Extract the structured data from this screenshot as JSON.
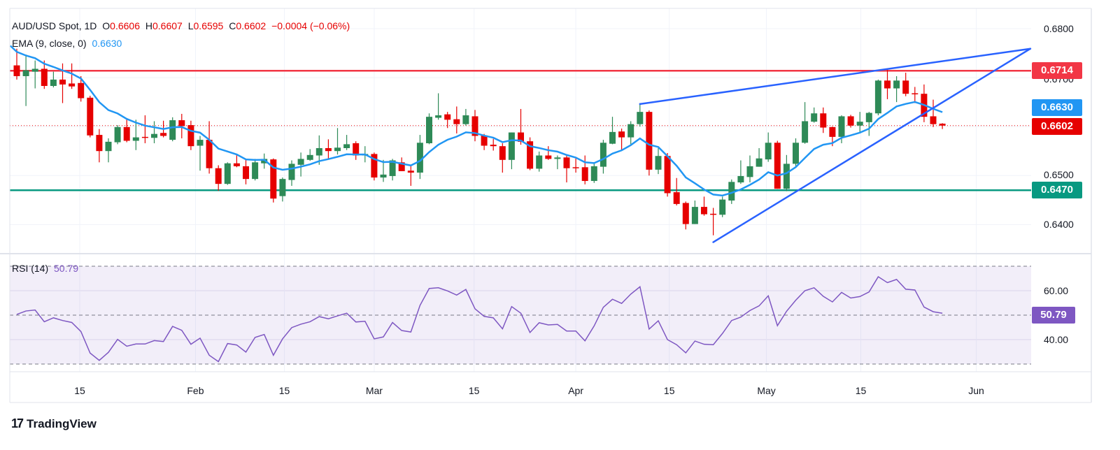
{
  "legend": {
    "symbol": "AUD/USD Spot, 1D",
    "open_label": "O",
    "open": "0.6606",
    "high_label": "H",
    "high": "0.6607",
    "low_label": "L",
    "low": "0.6595",
    "close_label": "C",
    "close": "0.6602",
    "change": "−0.0004 (−0.06%)",
    "ema_label": "EMA (9, close, 0)",
    "ema_value": "0.6630",
    "rsi_label": "RSI (14)",
    "rsi_value": "50.79"
  },
  "price_labels": {
    "resistance": "0.6714",
    "ema": "0.6630",
    "last": "0.6602",
    "support": "0.6470",
    "rsi": "50.79"
  },
  "logo": {
    "mark": "17",
    "text": "TradingView"
  },
  "colors": {
    "up": "#2e8a57",
    "down": "#e60000",
    "ema": "#2196f3",
    "trend": "#2962ff",
    "resistance": "#f23645",
    "support": "#089981",
    "rsi": "#7e57c2",
    "last": "#e60000"
  },
  "chart_data": {
    "type": "candlestick",
    "title": "AUD/USD Spot, 1D",
    "price_axis": {
      "ticks": [
        "0.6800",
        "0.6700",
        "0.6500",
        "0.6400"
      ],
      "range": [
        0.635,
        0.682
      ]
    },
    "rsi_axis": {
      "ticks": [
        "60.00",
        "40.00"
      ],
      "bands": [
        30,
        50,
        70
      ]
    },
    "x_ticks": [
      {
        "label": "15",
        "bar": 7.87
      },
      {
        "label": "Feb",
        "bar": 20.5
      },
      {
        "label": "15",
        "bar": 30.2
      },
      {
        "label": "Mar",
        "bar": 40
      },
      {
        "label": "15",
        "bar": 50.9
      },
      {
        "label": "Apr",
        "bar": 62
      },
      {
        "label": "15",
        "bar": 72.2
      },
      {
        "label": "May",
        "bar": 82.8
      },
      {
        "label": "15",
        "bar": 93.1
      },
      {
        "label": "Jun",
        "bar": 105.7
      }
    ],
    "ohlc": [
      [
        0.6725,
        0.6759,
        0.6696,
        0.6703
      ],
      [
        0.6703,
        0.6747,
        0.6642,
        0.6715
      ],
      [
        0.6712,
        0.6735,
        0.6678,
        0.6718
      ],
      [
        0.6718,
        0.6735,
        0.6677,
        0.6683
      ],
      [
        0.6683,
        0.6712,
        0.668,
        0.6696
      ],
      [
        0.6696,
        0.6729,
        0.6648,
        0.6686
      ],
      [
        0.6688,
        0.6729,
        0.6677,
        0.6682
      ],
      [
        0.6689,
        0.6703,
        0.6651,
        0.6658
      ],
      [
        0.6659,
        0.6663,
        0.6578,
        0.6582
      ],
      [
        0.6583,
        0.6595,
        0.6527,
        0.655
      ],
      [
        0.655,
        0.6576,
        0.6527,
        0.6569
      ],
      [
        0.6568,
        0.6603,
        0.6564,
        0.6599
      ],
      [
        0.6599,
        0.6616,
        0.6568,
        0.6571
      ],
      [
        0.6571,
        0.6614,
        0.6552,
        0.6578
      ],
      [
        0.6579,
        0.6623,
        0.6566,
        0.6577
      ],
      [
        0.6577,
        0.6611,
        0.6566,
        0.6585
      ],
      [
        0.6587,
        0.6612,
        0.6578,
        0.6581
      ],
      [
        0.6573,
        0.6619,
        0.657,
        0.6613
      ],
      [
        0.6613,
        0.6626,
        0.6576,
        0.6601
      ],
      [
        0.6603,
        0.6612,
        0.6552,
        0.656
      ],
      [
        0.6561,
        0.6581,
        0.651,
        0.6573
      ],
      [
        0.6573,
        0.6611,
        0.6504,
        0.6515
      ],
      [
        0.6515,
        0.6521,
        0.6469,
        0.6483
      ],
      [
        0.6483,
        0.6527,
        0.6481,
        0.6525
      ],
      [
        0.6525,
        0.6542,
        0.6517,
        0.6519
      ],
      [
        0.6519,
        0.6534,
        0.6482,
        0.6493
      ],
      [
        0.6493,
        0.6534,
        0.649,
        0.6527
      ],
      [
        0.6525,
        0.6545,
        0.6514,
        0.6534
      ],
      [
        0.6533,
        0.6535,
        0.6445,
        0.6453
      ],
      [
        0.6458,
        0.6496,
        0.6447,
        0.6493
      ],
      [
        0.6491,
        0.6531,
        0.6479,
        0.6524
      ],
      [
        0.6522,
        0.6547,
        0.6498,
        0.6534
      ],
      [
        0.6532,
        0.6554,
        0.653,
        0.6542
      ],
      [
        0.6541,
        0.6582,
        0.6522,
        0.6556
      ],
      [
        0.6556,
        0.6574,
        0.6535,
        0.655
      ],
      [
        0.655,
        0.6597,
        0.6543,
        0.6557
      ],
      [
        0.6556,
        0.6583,
        0.6552,
        0.6564
      ],
      [
        0.6566,
        0.657,
        0.6532,
        0.6541
      ],
      [
        0.6541,
        0.656,
        0.6527,
        0.6544
      ],
      [
        0.6544,
        0.6547,
        0.649,
        0.6496
      ],
      [
        0.6496,
        0.6532,
        0.6487,
        0.6502
      ],
      [
        0.6499,
        0.6534,
        0.649,
        0.6531
      ],
      [
        0.6527,
        0.6537,
        0.6509,
        0.6509
      ],
      [
        0.651,
        0.6522,
        0.6479,
        0.6506
      ],
      [
        0.6506,
        0.6583,
        0.6493,
        0.6567
      ],
      [
        0.6566,
        0.6627,
        0.6564,
        0.662
      ],
      [
        0.6618,
        0.6668,
        0.6614,
        0.6623
      ],
      [
        0.6625,
        0.663,
        0.6597,
        0.6614
      ],
      [
        0.6615,
        0.6641,
        0.6586,
        0.6605
      ],
      [
        0.6605,
        0.6636,
        0.6602,
        0.6623
      ],
      [
        0.6621,
        0.6634,
        0.657,
        0.6581
      ],
      [
        0.6582,
        0.6585,
        0.6552,
        0.6561
      ],
      [
        0.6563,
        0.6575,
        0.6551,
        0.656
      ],
      [
        0.656,
        0.6566,
        0.6506,
        0.6532
      ],
      [
        0.6532,
        0.6588,
        0.6513,
        0.6588
      ],
      [
        0.6588,
        0.6636,
        0.6563,
        0.6569
      ],
      [
        0.657,
        0.6578,
        0.6511,
        0.6514
      ],
      [
        0.6514,
        0.6549,
        0.6508,
        0.6541
      ],
      [
        0.6541,
        0.656,
        0.6532,
        0.6534
      ],
      [
        0.6534,
        0.6541,
        0.6513,
        0.6537
      ],
      [
        0.6537,
        0.6542,
        0.6486,
        0.6515
      ],
      [
        0.6517,
        0.6535,
        0.6506,
        0.6515
      ],
      [
        0.6517,
        0.6541,
        0.6482,
        0.6489
      ],
      [
        0.6489,
        0.6525,
        0.6485,
        0.6519
      ],
      [
        0.6518,
        0.6573,
        0.6504,
        0.6567
      ],
      [
        0.6565,
        0.662,
        0.6564,
        0.6589
      ],
      [
        0.659,
        0.6596,
        0.6551,
        0.6578
      ],
      [
        0.6578,
        0.6611,
        0.6564,
        0.6605
      ],
      [
        0.6605,
        0.6648,
        0.66,
        0.663
      ],
      [
        0.663,
        0.6633,
        0.65,
        0.6512
      ],
      [
        0.6512,
        0.6556,
        0.6503,
        0.654
      ],
      [
        0.654,
        0.6546,
        0.6457,
        0.6464
      ],
      [
        0.6466,
        0.6495,
        0.6439,
        0.6442
      ],
      [
        0.6444,
        0.6447,
        0.639,
        0.6401
      ],
      [
        0.6401,
        0.6449,
        0.6401,
        0.6436
      ],
      [
        0.6436,
        0.6457,
        0.6418,
        0.6421
      ],
      [
        0.6422,
        0.6434,
        0.6378,
        0.642
      ],
      [
        0.642,
        0.6457,
        0.6415,
        0.6451
      ],
      [
        0.6449,
        0.6492,
        0.6442,
        0.6487
      ],
      [
        0.6486,
        0.6531,
        0.6483,
        0.6499
      ],
      [
        0.6497,
        0.6541,
        0.6486,
        0.6519
      ],
      [
        0.6518,
        0.6556,
        0.6518,
        0.6535
      ],
      [
        0.6533,
        0.6588,
        0.6528,
        0.6567
      ],
      [
        0.6567,
        0.6571,
        0.6473,
        0.6473
      ],
      [
        0.6473,
        0.6542,
        0.6468,
        0.6524
      ],
      [
        0.6524,
        0.6576,
        0.6518,
        0.6567
      ],
      [
        0.6567,
        0.665,
        0.6565,
        0.6611
      ],
      [
        0.661,
        0.6639,
        0.6608,
        0.6627
      ],
      [
        0.6627,
        0.6639,
        0.6587,
        0.6598
      ],
      [
        0.6599,
        0.66,
        0.656,
        0.6579
      ],
      [
        0.6579,
        0.6623,
        0.6566,
        0.6621
      ],
      [
        0.6621,
        0.6624,
        0.6598,
        0.6602
      ],
      [
        0.6602,
        0.663,
        0.6586,
        0.661
      ],
      [
        0.6609,
        0.663,
        0.6581,
        0.6628
      ],
      [
        0.6627,
        0.6696,
        0.6623,
        0.6694
      ],
      [
        0.6694,
        0.6716,
        0.6656,
        0.6678
      ],
      [
        0.6678,
        0.6703,
        0.665,
        0.6694
      ],
      [
        0.6694,
        0.671,
        0.6662,
        0.6667
      ],
      [
        0.6668,
        0.6681,
        0.6648,
        0.6666
      ],
      [
        0.6667,
        0.6686,
        0.6609,
        0.662
      ],
      [
        0.6621,
        0.6655,
        0.6599,
        0.6605
      ],
      [
        0.6606,
        0.6607,
        0.6595,
        0.6602
      ]
    ],
    "ema": {
      "period": 9,
      "initial": 0.6765,
      "last": 0.663
    },
    "rsi": [
      50.3,
      51.7,
      52.1,
      47.3,
      48.9,
      47.8,
      47.0,
      43.3,
      34.5,
      31.5,
      34.8,
      40.1,
      37.3,
      38.2,
      38.2,
      39.6,
      39.2,
      45.4,
      43.8,
      38.1,
      40.6,
      33.6,
      31.0,
      38.4,
      37.8,
      34.9,
      40.9,
      42.1,
      33.6,
      40.3,
      44.9,
      46.3,
      47.3,
      49.4,
      48.5,
      49.7,
      50.8,
      47.2,
      47.5,
      40.3,
      41.1,
      47.0,
      43.7,
      43.1,
      54.0,
      60.9,
      61.2,
      59.9,
      58.2,
      60.5,
      52.6,
      49.5,
      48.9,
      44.4,
      53.5,
      50.8,
      42.9,
      46.9,
      46.0,
      46.2,
      43.5,
      43.5,
      39.5,
      45.6,
      53.2,
      56.5,
      54.8,
      58.6,
      61.6,
      44.3,
      47.7,
      40.0,
      37.9,
      34.6,
      39.4,
      38.1,
      37.9,
      42.5,
      47.8,
      49.2,
      51.9,
      53.8,
      57.9,
      45.7,
      51.6,
      56.1,
      60.0,
      61.2,
      57.7,
      55.4,
      59.3,
      57.0,
      57.6,
      59.5,
      65.7,
      63.3,
      64.6,
      60.6,
      60.3,
      53.3,
      51.4,
      50.79
    ],
    "horizontal_lines": [
      {
        "name": "resistance",
        "price": 0.6714
      },
      {
        "name": "support",
        "price": 0.647
      },
      {
        "name": "last-price",
        "price": 0.6602
      }
    ],
    "trendlines": [
      {
        "name": "upper-channel",
        "from": {
          "bar": 69,
          "price": 0.6646
        },
        "to": {
          "bar": 111.6,
          "price": 0.6759
        }
      },
      {
        "name": "lower-channel",
        "from": {
          "bar": 77,
          "price": 0.6364
        },
        "to": {
          "bar": 111.6,
          "price": 0.6759
        }
      }
    ]
  }
}
